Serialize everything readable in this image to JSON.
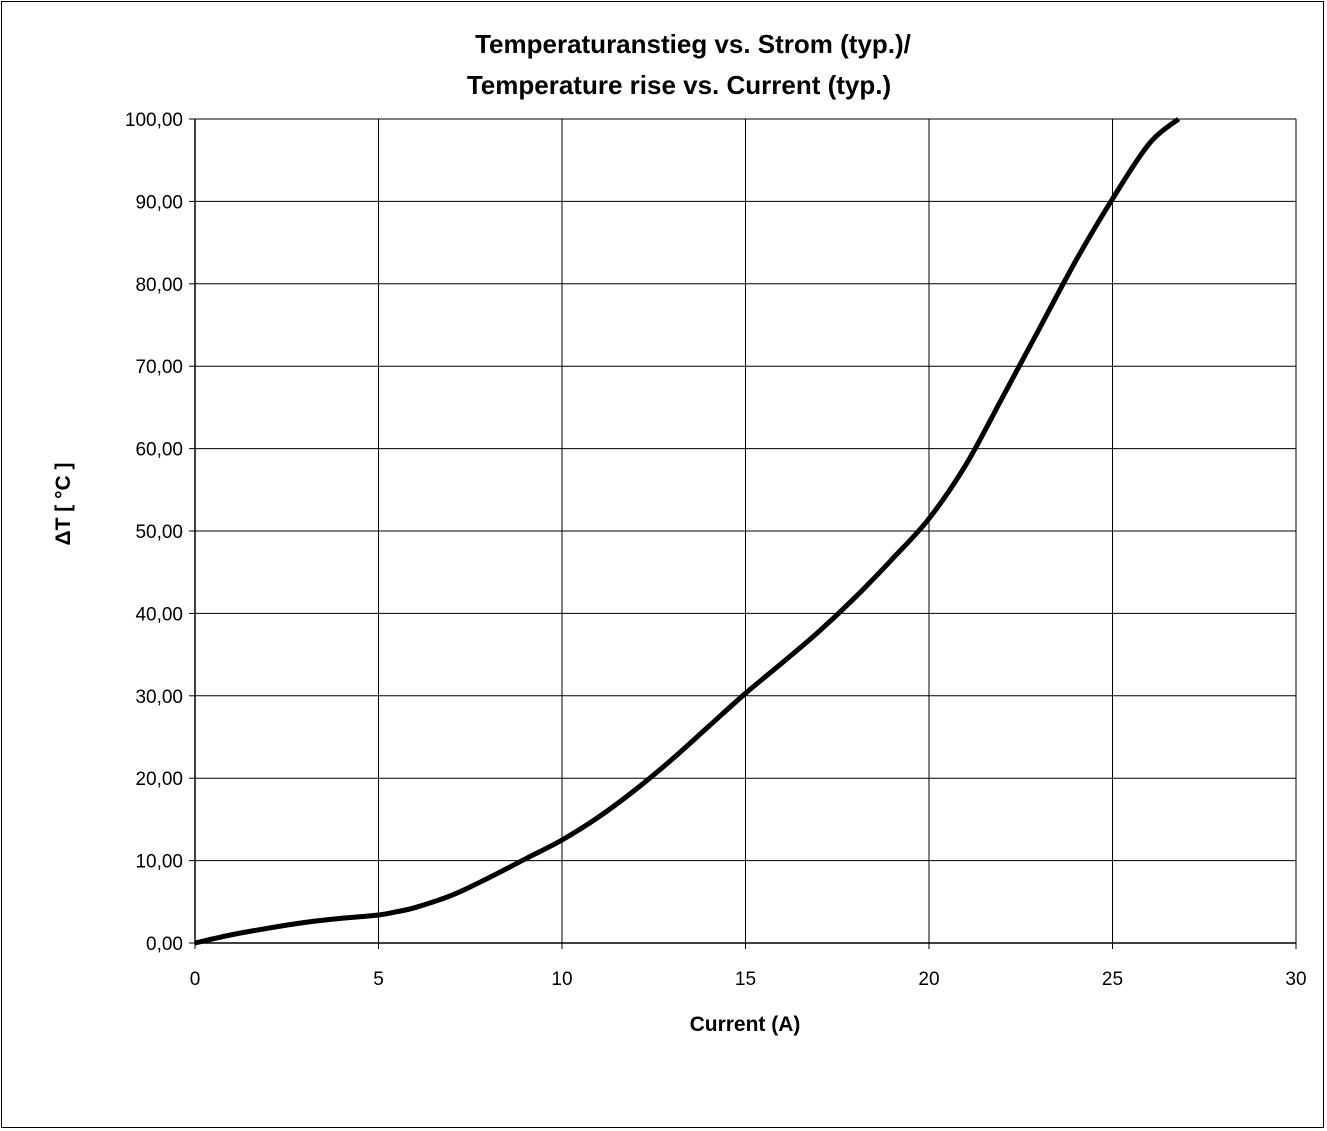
{
  "chart_data": {
    "type": "line",
    "title_line1": "Temperaturanstieg vs. Strom (typ.)/",
    "title_line2": "Temperature rise vs. Current (typ.)",
    "xlabel": "Current (A)",
    "ylabel": "ΔT [ °C ]",
    "xlim": [
      0,
      30
    ],
    "ylim": [
      0,
      100
    ],
    "x_ticks": [
      "0",
      "5",
      "10",
      "15",
      "20",
      "25",
      "30"
    ],
    "y_ticks": [
      "0,00",
      "10,00",
      "20,00",
      "30,00",
      "40,00",
      "50,00",
      "60,00",
      "70,00",
      "80,00",
      "90,00",
      "100,00"
    ],
    "grid": true,
    "legend": "none",
    "line_color": "#000000",
    "series": [
      {
        "x": [
          0,
          1,
          2,
          3,
          4,
          5,
          5.5,
          6,
          7,
          8,
          9,
          10,
          11,
          12,
          13,
          14,
          15,
          16,
          17,
          18,
          19,
          20,
          21,
          22,
          23,
          24,
          25,
          26,
          26.8
        ],
        "y": [
          0,
          1.0,
          1.8,
          2.5,
          3.0,
          3.4,
          3.8,
          4.3,
          5.8,
          7.9,
          10.2,
          12.5,
          15.3,
          18.6,
          22.3,
          26.3,
          30.3,
          34.0,
          37.8,
          42.0,
          46.6,
          51.5,
          58.0,
          66.2,
          74.5,
          82.8,
          90.3,
          97.0,
          100.0
        ]
      }
    ]
  }
}
